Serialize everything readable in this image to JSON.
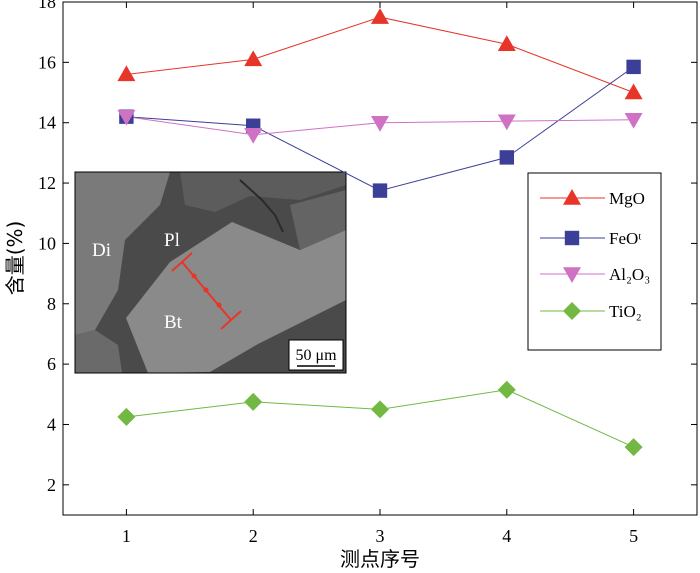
{
  "chart_data": {
    "type": "line",
    "xlabel": "测点序号",
    "ylabel": "含量(%)",
    "xlim": [
      0.5,
      5.5
    ],
    "ylim": [
      1,
      18
    ],
    "x": [
      1,
      2,
      3,
      4,
      5
    ],
    "xticks": [
      "1",
      "2",
      "3",
      "4",
      "5"
    ],
    "yticks": [
      "2",
      "4",
      "6",
      "8",
      "10",
      "12",
      "14",
      "16",
      "18"
    ],
    "grid": false,
    "legend_position": "right",
    "series": [
      {
        "name": "MgO",
        "values": [
          15.6,
          16.1,
          17.5,
          16.6,
          15.0
        ],
        "color": "#e8352a",
        "marker": "triangle-up"
      },
      {
        "name": "FeOᵗ",
        "values": [
          14.2,
          13.9,
          11.75,
          12.85,
          15.85
        ],
        "color": "#3b3f98",
        "marker": "square"
      },
      {
        "name": "Al₂O₃",
        "values": [
          14.2,
          13.6,
          14.0,
          14.05,
          14.1
        ],
        "color": "#cf72c4",
        "marker": "triangle-down"
      },
      {
        "name": "TiO₂",
        "values": [
          4.25,
          4.75,
          4.5,
          5.15,
          3.25
        ],
        "color": "#72b842",
        "marker": "diamond"
      }
    ]
  },
  "inset": {
    "labels": {
      "di": "Di",
      "pl": "Pl",
      "bt": "Bt"
    },
    "scale_bar": "50 μm",
    "profile_color": "#e8352a"
  }
}
